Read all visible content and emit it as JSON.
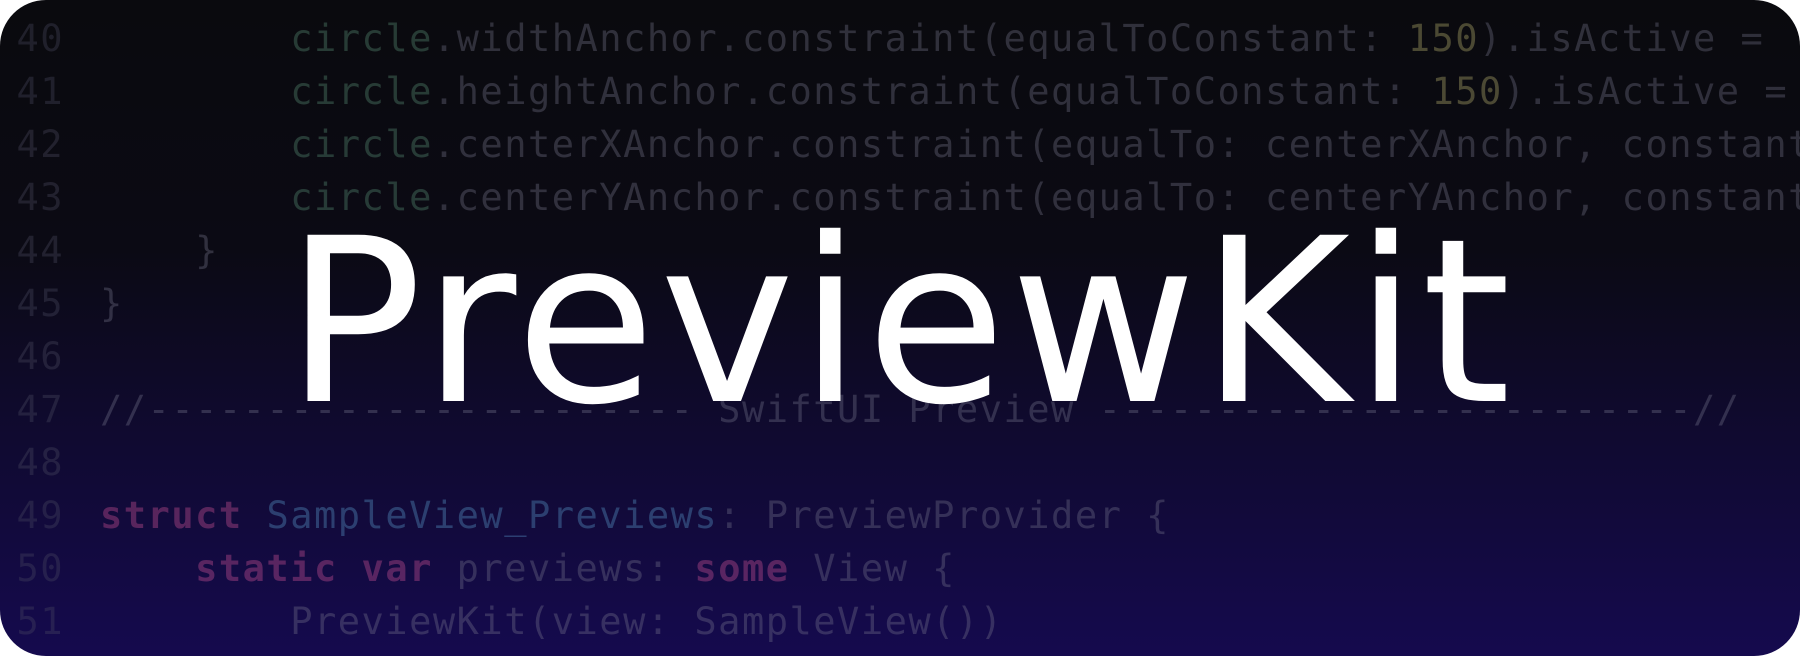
{
  "title": "PreviewKit",
  "colors": {
    "background_top": "#0a0a0e",
    "background_bottom": "#150a4e",
    "title": "#ffffff"
  },
  "code_lines": [
    {
      "number": "40",
      "tokens": [
        {
          "t": "        ",
          "k": "plain"
        },
        {
          "t": "circle",
          "k": "ident"
        },
        {
          "t": ".widthAnchor.constraint(equalToConstant: ",
          "k": "plain"
        },
        {
          "t": "150",
          "k": "num"
        },
        {
          "t": ").isActive = ",
          "k": "plain"
        }
      ]
    },
    {
      "number": "41",
      "tokens": [
        {
          "t": "        ",
          "k": "plain"
        },
        {
          "t": "circle",
          "k": "ident"
        },
        {
          "t": ".heightAnchor.constraint(equalToConstant: ",
          "k": "plain"
        },
        {
          "t": "150",
          "k": "num"
        },
        {
          "t": ").isActive =",
          "k": "plain"
        }
      ]
    },
    {
      "number": "42",
      "tokens": [
        {
          "t": "        ",
          "k": "plain"
        },
        {
          "t": "circle",
          "k": "ident"
        },
        {
          "t": ".centerXAnchor.constraint(equalTo: centerXAnchor, constant",
          "k": "plain"
        }
      ]
    },
    {
      "number": "43",
      "tokens": [
        {
          "t": "        ",
          "k": "plain"
        },
        {
          "t": "circle",
          "k": "ident"
        },
        {
          "t": ".centerYAnchor.constraint(equalTo: centerYAnchor, constant",
          "k": "plain"
        }
      ]
    },
    {
      "number": "44",
      "tokens": [
        {
          "t": "    }",
          "k": "plain"
        }
      ]
    },
    {
      "number": "45",
      "tokens": [
        {
          "t": "}",
          "k": "plain"
        }
      ]
    },
    {
      "number": "46",
      "tokens": []
    },
    {
      "number": "47",
      "tokens": [
        {
          "t": "//----------------------- SwiftUI Preview -------------------------//",
          "k": "plain"
        }
      ]
    },
    {
      "number": "48",
      "tokens": []
    },
    {
      "number": "49",
      "tokens": [
        {
          "t": "struct",
          "k": "kw"
        },
        {
          "t": " ",
          "k": "plain"
        },
        {
          "t": "SampleView_Previews",
          "k": "type"
        },
        {
          "t": ": PreviewProvider {",
          "k": "plain"
        }
      ]
    },
    {
      "number": "50",
      "tokens": [
        {
          "t": "    ",
          "k": "plain"
        },
        {
          "t": "static var",
          "k": "kw"
        },
        {
          "t": " previews: ",
          "k": "plain"
        },
        {
          "t": "some",
          "k": "kw"
        },
        {
          "t": " View {",
          "k": "plain"
        }
      ]
    },
    {
      "number": "51",
      "tokens": [
        {
          "t": "        PreviewKit(view: SampleView())",
          "k": "plain"
        }
      ]
    }
  ]
}
